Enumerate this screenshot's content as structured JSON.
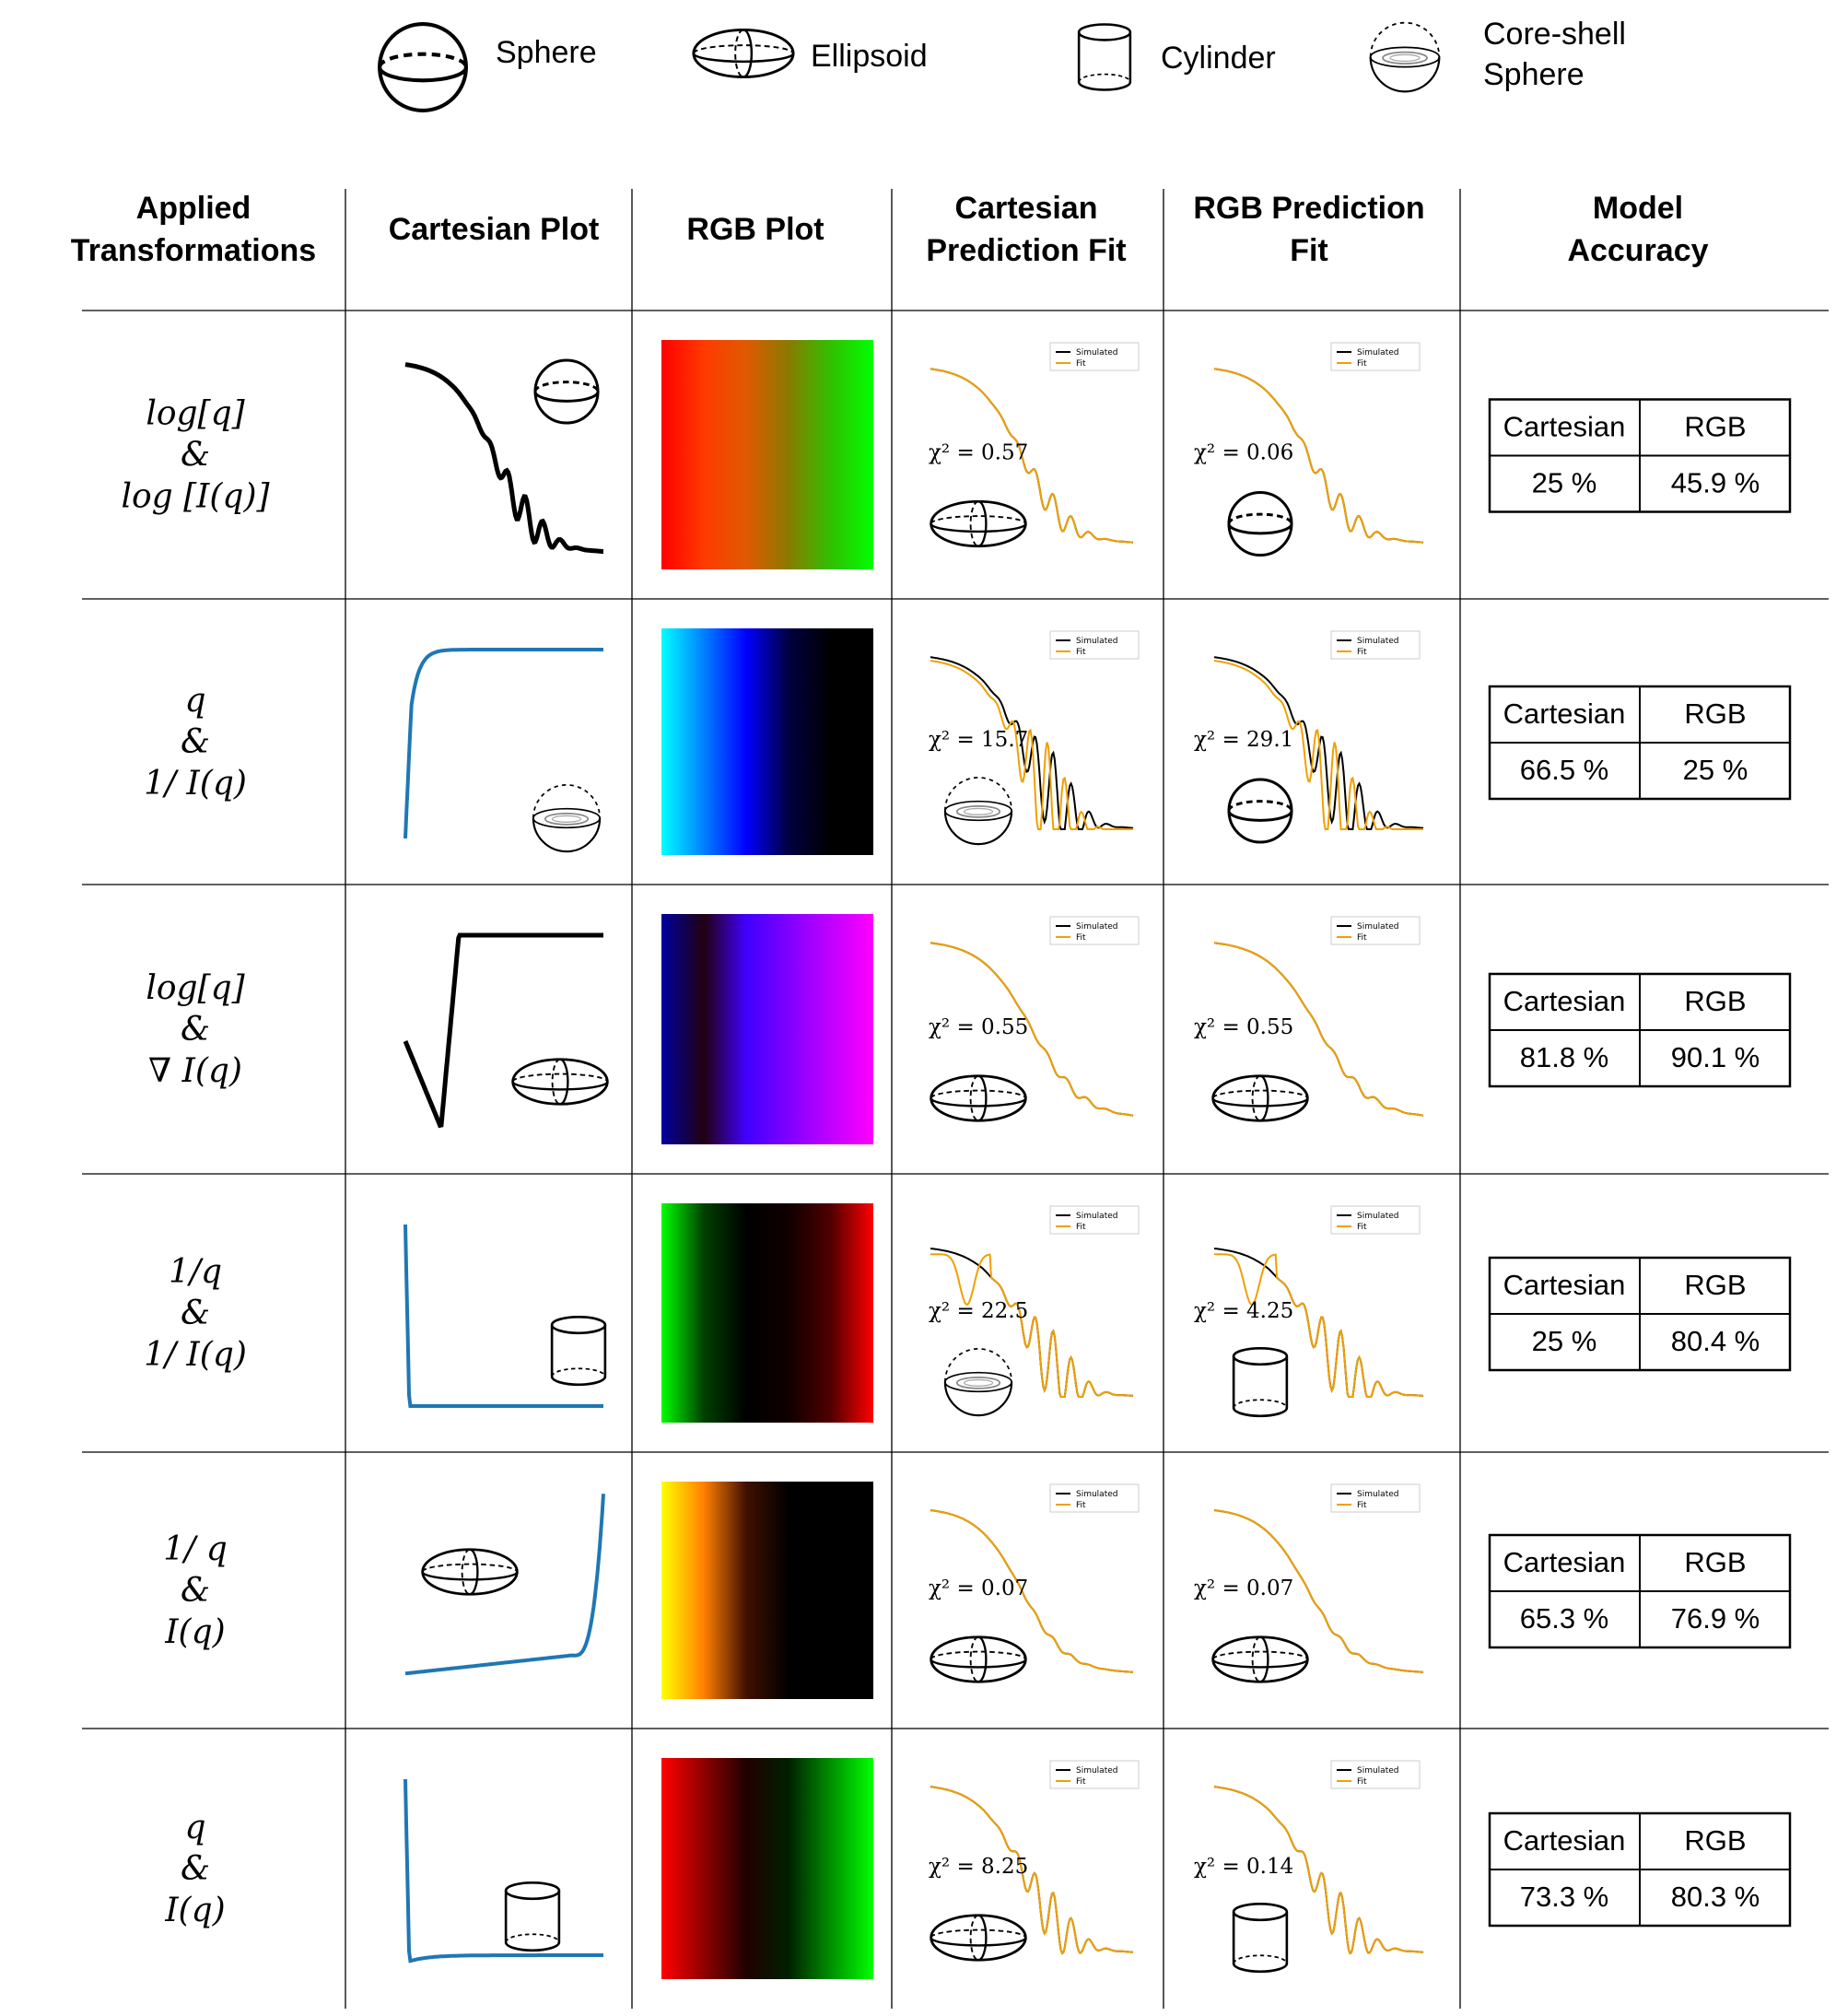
{
  "legend": [
    {
      "label": "Sphere",
      "icon": "sphere-icon"
    },
    {
      "label": "Ellipsoid",
      "icon": "ellipsoid-icon"
    },
    {
      "label": "Cylinder",
      "icon": "cylinder-icon"
    },
    {
      "label_line1": "Core-shell",
      "label_line2": "Sphere",
      "icon": "core-shell-sphere-icon"
    }
  ],
  "headers": {
    "transformations": [
      "Applied",
      "Transformations"
    ],
    "cartesian_plot": "Cartesian Plot",
    "rgb_plot": "RGB Plot",
    "cartesian_fit": [
      "Cartesian",
      "Prediction Fit"
    ],
    "rgb_fit": [
      "RGB Prediction",
      "Fit"
    ],
    "accuracy": [
      "Model",
      "Accuracy"
    ]
  },
  "fit_legend": {
    "simulated": "Simulated",
    "fit": "Fit"
  },
  "colors": {
    "simulated": "#000000",
    "fit": "#f0a000",
    "cartesian_line_black": "#000000",
    "cartesian_line_blue": "#1f77b4"
  },
  "accuracy_labels": {
    "cartesian": "Cartesian",
    "rgb": "RGB"
  },
  "rows": [
    {
      "transform": [
        "log[q]",
        "&",
        "log [I(q)]"
      ],
      "cartesian_plot": {
        "color": "#000000",
        "shape_icon": "sphere-icon"
      },
      "rgb_gradient": [
        "#ff0000",
        "#ff3a00",
        "#e05a00",
        "#8a7a00",
        "#30c000",
        "#00ff00"
      ],
      "cartesian_fit": {
        "chi2": "χ² = 0.57",
        "shape_icon": "ellipsoid-icon"
      },
      "rgb_fit": {
        "chi2": "χ² = 0.06",
        "shape_icon": "sphere-icon"
      },
      "accuracy": {
        "cartesian": "25 %",
        "rgb": "45.9 %"
      }
    },
    {
      "transform": [
        "q",
        "&",
        "1/ I(q)"
      ],
      "cartesian_plot": {
        "color": "#1f77b4",
        "shape_icon": "core-shell-sphere-icon"
      },
      "rgb_gradient": [
        "#00ffff",
        "#0080ff",
        "#0000ff",
        "#000040",
        "#000000",
        "#000000"
      ],
      "cartesian_fit": {
        "chi2": "χ² = 15.7",
        "shape_icon": "core-shell-sphere-icon"
      },
      "rgb_fit": {
        "chi2": "χ² = 29.1",
        "shape_icon": "sphere-icon"
      },
      "accuracy": {
        "cartesian": "66.5 %",
        "rgb": "25 %"
      }
    },
    {
      "transform": [
        "log[q]",
        "&",
        "∇ I(q)"
      ],
      "cartesian_plot": {
        "color": "#000000",
        "shape_icon": "ellipsoid-icon"
      },
      "rgb_gradient": [
        "#0000a0",
        "#200010",
        "#4000ff",
        "#8000ff",
        "#c000ff",
        "#ff00ff"
      ],
      "cartesian_fit": {
        "chi2": "χ² = 0.55",
        "shape_icon": "ellipsoid-icon"
      },
      "rgb_fit": {
        "chi2": "χ² = 0.55",
        "shape_icon": "ellipsoid-icon"
      },
      "accuracy": {
        "cartesian": "81.8 %",
        "rgb": "90.1 %"
      }
    },
    {
      "transform": [
        "1/q",
        "&",
        "1/ I(q)"
      ],
      "cartesian_plot": {
        "color": "#1f77b4",
        "shape_icon": "cylinder-icon"
      },
      "rgb_gradient": [
        "#00ff00",
        "#004000",
        "#000000",
        "#100000",
        "#500000",
        "#ff0000"
      ],
      "cartesian_fit": {
        "chi2": "χ² = 22.5",
        "shape_icon": "core-shell-sphere-icon"
      },
      "rgb_fit": {
        "chi2": "χ² = 4.25",
        "shape_icon": "cylinder-icon"
      },
      "accuracy": {
        "cartesian": "25 %",
        "rgb": "80.4 %"
      }
    },
    {
      "transform": [
        "1/ q",
        "&",
        "I(q)"
      ],
      "cartesian_plot": {
        "color": "#1f77b4",
        "shape_icon": "ellipsoid-icon"
      },
      "rgb_gradient": [
        "#ffff00",
        "#ff8000",
        "#401000",
        "#000000",
        "#000000",
        "#000000"
      ],
      "cartesian_fit": {
        "chi2": "χ² = 0.07",
        "shape_icon": "ellipsoid-icon"
      },
      "rgb_fit": {
        "chi2": "χ² = 0.07",
        "shape_icon": "ellipsoid-icon"
      },
      "accuracy": {
        "cartesian": "65.3 %",
        "rgb": "76.9 %"
      }
    },
    {
      "transform": [
        "q",
        "&",
        "I(q)"
      ],
      "cartesian_plot": {
        "color": "#1f77b4",
        "shape_icon": "cylinder-icon"
      },
      "rgb_gradient": [
        "#ff0000",
        "#900000",
        "#200000",
        "#002000",
        "#009000",
        "#00ff00"
      ],
      "cartesian_fit": {
        "chi2": "χ² = 8.25",
        "shape_icon": "ellipsoid-icon"
      },
      "rgb_fit": {
        "chi2": "χ² = 0.14",
        "shape_icon": "cylinder-icon"
      },
      "accuracy": {
        "cartesian": "73.3 %",
        "rgb": "80.3 %"
      }
    }
  ]
}
